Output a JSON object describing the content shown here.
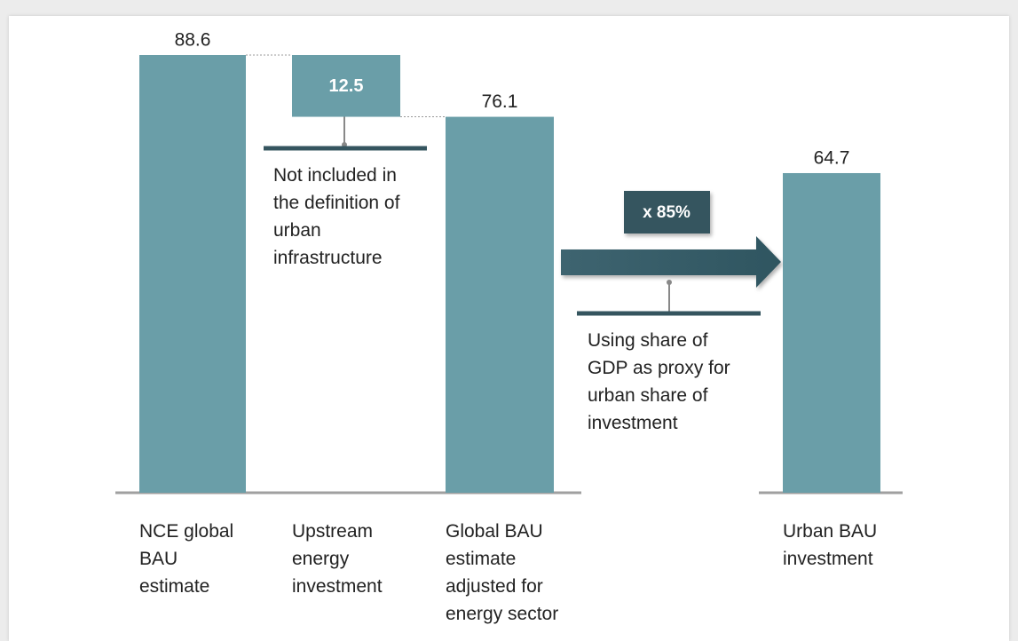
{
  "chart_data": {
    "type": "waterfall",
    "categories": [
      "NCE global BAU estimate",
      "Upstream energy investment",
      "Global BAU estimate adjusted for energy sector",
      "Urban BAU investment"
    ],
    "values": [
      88.6,
      12.5,
      76.1,
      64.7
    ],
    "measure": [
      "absolute",
      "decrease",
      "absolute",
      "absolute"
    ],
    "color": "#6a9ea8",
    "annotations": {
      "excluded": "Not included in the definition of urban infrastructure",
      "multiplier": "x 85%",
      "proxy": "Using share of GDP as proxy for urban share of investment"
    }
  }
}
